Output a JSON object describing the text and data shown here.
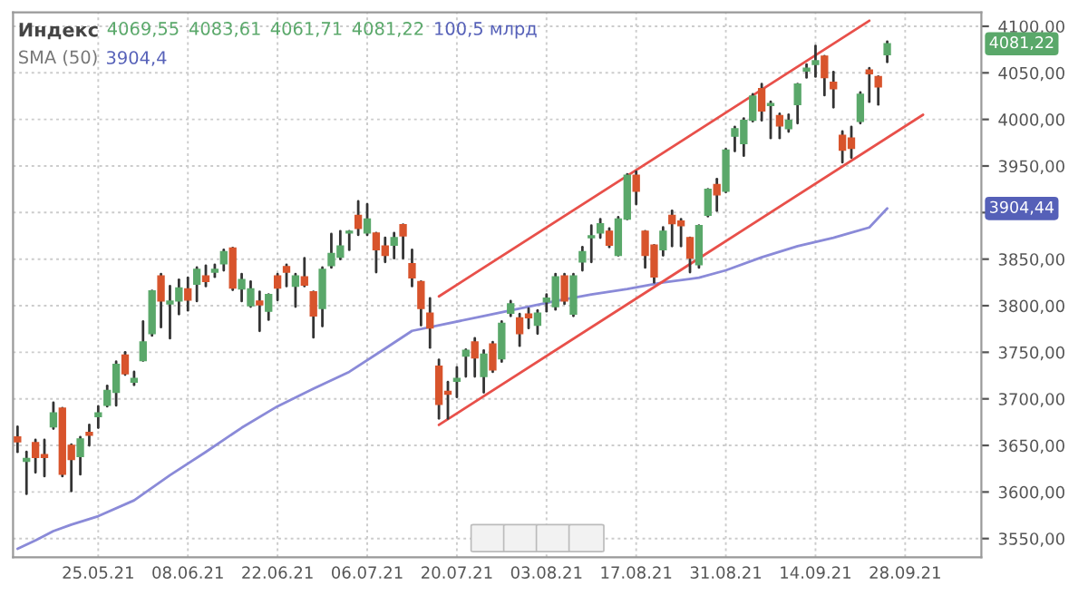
{
  "chart_data": {
    "type": "candlestick",
    "title": "Индекс",
    "categories": [
      null,
      null,
      null,
      null,
      null,
      null,
      null,
      null,
      null,
      "25.05.21",
      null,
      null,
      null,
      null,
      null,
      null,
      null,
      null,
      null,
      "08.06.21",
      null,
      null,
      null,
      null,
      null,
      null,
      null,
      null,
      null,
      "22.06.21",
      null,
      null,
      null,
      null,
      null,
      null,
      null,
      null,
      null,
      "06.07.21",
      null,
      null,
      null,
      null,
      null,
      null,
      null,
      null,
      null,
      "20.07.21",
      null,
      null,
      null,
      null,
      null,
      null,
      null,
      null,
      null,
      "03.08.21",
      null,
      null,
      null,
      null,
      null,
      null,
      null,
      null,
      null,
      "17.08.21",
      null,
      null,
      null,
      null,
      null,
      null,
      null,
      null,
      null,
      "31.08.21",
      null,
      null,
      null,
      null,
      null,
      null,
      null,
      null,
      null,
      "14.09.21",
      null,
      null,
      null,
      null,
      null,
      null,
      null,
      null,
      null,
      "28.09.21",
      null,
      null,
      null,
      null,
      null,
      null,
      null,
      null
    ],
    "ohlc": [
      [
        3659,
        3670,
        3643,
        3654
      ],
      [
        3633,
        3643,
        3598,
        3636
      ],
      [
        3653,
        3656,
        3621,
        3637
      ],
      [
        3640,
        3656,
        3617,
        3637
      ],
      [
        3670,
        3696,
        3668,
        3685
      ],
      [
        3690,
        3690,
        3617,
        3619
      ],
      [
        3650,
        3651,
        3601,
        3635
      ],
      [
        3638,
        3659,
        3619,
        3657
      ],
      [
        3664,
        3672,
        3650,
        3661
      ],
      [
        3681,
        3692,
        3669,
        3685
      ],
      [
        3693,
        3714,
        3692,
        3709
      ],
      [
        3707,
        3740,
        3693,
        3737
      ],
      [
        3747,
        3750,
        3726,
        3727
      ],
      [
        3718,
        3729,
        3715,
        3722
      ],
      [
        3741,
        3783,
        3741,
        3761
      ],
      [
        3770,
        3816,
        3768,
        3816
      ],
      [
        3832,
        3834,
        3777,
        3805
      ],
      [
        3802,
        3821,
        3765,
        3805
      ],
      [
        3805,
        3828,
        3791,
        3819
      ],
      [
        3818,
        3830,
        3795,
        3806
      ],
      [
        3823,
        3841,
        3805,
        3839
      ],
      [
        3832,
        3843,
        3821,
        3826
      ],
      [
        3836,
        3844,
        3831,
        3839
      ],
      [
        3845,
        3860,
        3838,
        3858
      ],
      [
        3862,
        3862,
        3817,
        3819
      ],
      [
        3818,
        3834,
        3805,
        3828
      ],
      [
        3800,
        3826,
        3799,
        3818
      ],
      [
        3805,
        3815,
        3773,
        3801
      ],
      [
        3794,
        3812,
        3785,
        3812
      ],
      [
        3832,
        3834,
        3806,
        3819
      ],
      [
        3842,
        3844,
        3821,
        3836
      ],
      [
        3821,
        3834,
        3799,
        3832
      ],
      [
        3831,
        3851,
        3821,
        3822
      ],
      [
        3815,
        3815,
        3766,
        3789
      ],
      [
        3797,
        3841,
        3778,
        3839
      ],
      [
        3843,
        3877,
        3841,
        3856
      ],
      [
        3852,
        3880,
        3850,
        3864
      ],
      [
        3878,
        3880,
        3860,
        3880
      ],
      [
        3897,
        3912,
        3876,
        3883
      ],
      [
        3878,
        3909,
        3876,
        3893
      ],
      [
        3878,
        3878,
        3836,
        3860
      ],
      [
        3864,
        3873,
        3847,
        3854
      ],
      [
        3865,
        3878,
        3851,
        3873
      ],
      [
        3887,
        3887,
        3851,
        3875
      ],
      [
        3845,
        3860,
        3821,
        3830
      ],
      [
        3826,
        3826,
        3779,
        3797
      ],
      [
        3792,
        3808,
        3755,
        3776
      ],
      [
        3735,
        3742,
        3679,
        3694
      ],
      [
        3708,
        3718,
        3679,
        3705
      ],
      [
        3719,
        3734,
        3702,
        3722
      ],
      [
        3746,
        3753,
        3724,
        3752
      ],
      [
        3761,
        3765,
        3724,
        3744
      ],
      [
        3724,
        3752,
        3707,
        3748
      ],
      [
        3759,
        3761,
        3729,
        3731
      ],
      [
        3743,
        3783,
        3740,
        3781
      ],
      [
        3792,
        3805,
        3789,
        3802
      ],
      [
        3787,
        3791,
        3757,
        3770
      ],
      [
        3791,
        3797,
        3776,
        3787
      ],
      [
        3779,
        3795,
        3770,
        3792
      ],
      [
        3804,
        3812,
        3794,
        3808
      ],
      [
        3799,
        3834,
        3796,
        3831
      ],
      [
        3832,
        3834,
        3802,
        3805
      ],
      [
        3791,
        3834,
        3789,
        3832
      ],
      [
        3847,
        3863,
        3838,
        3858
      ],
      [
        3873,
        3886,
        3847,
        3875
      ],
      [
        3878,
        3893,
        3873,
        3888
      ],
      [
        3880,
        3883,
        3863,
        3865
      ],
      [
        3854,
        3895,
        3854,
        3893
      ],
      [
        3893,
        3941,
        3893,
        3940
      ],
      [
        3940,
        3944,
        3909,
        3923
      ],
      [
        3880,
        3880,
        3841,
        3854
      ],
      [
        3865,
        3865,
        3825,
        3831
      ],
      [
        3860,
        3884,
        3854,
        3880
      ],
      [
        3897,
        3902,
        3864,
        3888
      ],
      [
        3891,
        3893,
        3864,
        3886
      ],
      [
        3873,
        3873,
        3836,
        3851
      ],
      [
        3844,
        3886,
        3841,
        3886
      ],
      [
        3897,
        3925,
        3896,
        3925
      ],
      [
        3930,
        3936,
        3902,
        3919
      ],
      [
        3923,
        3968,
        3922,
        3967
      ],
      [
        3982,
        3992,
        3966,
        3990
      ],
      [
        3974,
        4001,
        3961,
        3999
      ],
      [
        3999,
        4027,
        3998,
        4025
      ],
      [
        4033,
        4038,
        3999,
        4009
      ],
      [
        4015,
        4019,
        3980,
        4017
      ],
      [
        4004,
        4006,
        3980,
        3993
      ],
      [
        3990,
        4005,
        3987,
        3999
      ],
      [
        4016,
        4038,
        3996,
        4038
      ],
      [
        4052,
        4059,
        4045,
        4055
      ],
      [
        4059,
        4079,
        4046,
        4063
      ],
      [
        4068,
        4068,
        4026,
        4045
      ],
      [
        4040,
        4051,
        4013,
        4033
      ],
      [
        3983,
        3987,
        3954,
        3967
      ],
      [
        3980,
        3992,
        3959,
        3969
      ],
      [
        3998,
        4029,
        3996,
        4027
      ],
      [
        4053,
        4055,
        4019,
        4049
      ],
      [
        4046,
        4046,
        4016,
        4035
      ],
      [
        4069.55,
        4083.61,
        4061.71,
        4081.22
      ],
      null,
      null,
      null,
      null,
      null,
      null,
      null,
      null,
      null,
      null
    ],
    "series": [
      {
        "type": "line",
        "name": "SMA (50)",
        "color": "#8a8ad8",
        "values": [
          3539,
          null,
          3548,
          null,
          3558,
          null,
          3565,
          null,
          null,
          3574,
          null,
          null,
          null,
          3591,
          null,
          null,
          null,
          3618,
          null,
          null,
          null,
          3643,
          null,
          null,
          null,
          3669,
          null,
          null,
          null,
          3692,
          null,
          null,
          null,
          3711,
          null,
          null,
          null,
          3729,
          null,
          null,
          null,
          3754,
          null,
          null,
          3773,
          null,
          null,
          3779,
          null,
          null,
          null,
          null,
          3789,
          null,
          null,
          null,
          3797,
          null,
          null,
          null,
          3805,
          null,
          null,
          null,
          3812,
          null,
          null,
          null,
          3818,
          null,
          null,
          null,
          3825,
          null,
          null,
          null,
          3830,
          null,
          null,
          3838,
          null,
          null,
          null,
          3852,
          null,
          null,
          null,
          3864,
          null,
          null,
          null,
          3873,
          null,
          null,
          null,
          3884,
          null,
          3904.4,
          null,
          null,
          null,
          null,
          null,
          null,
          null,
          null,
          null,
          null
        ]
      },
      {
        "type": "line",
        "color": "#e8504a",
        "values": [
          null,
          null,
          null,
          null,
          null,
          null,
          null,
          null,
          null,
          null,
          null,
          null,
          null,
          null,
          null,
          null,
          null,
          null,
          null,
          null,
          null,
          null,
          null,
          null,
          null,
          null,
          null,
          null,
          null,
          null,
          null,
          null,
          null,
          null,
          null,
          null,
          null,
          null,
          null,
          null,
          null,
          null,
          null,
          null,
          null,
          null,
          null,
          3810,
          null,
          null,
          null,
          null,
          null,
          null,
          null,
          null,
          null,
          null,
          null,
          null,
          null,
          null,
          null,
          null,
          null,
          null,
          null,
          null,
          null,
          null,
          null,
          null,
          null,
          null,
          null,
          null,
          null,
          null,
          null,
          null,
          null,
          null,
          null,
          null,
          null,
          null,
          null,
          null,
          null,
          null,
          null,
          null,
          null,
          null,
          null,
          4106,
          null,
          null,
          null,
          null,
          null,
          null,
          null,
          null,
          null,
          null,
          null,
          null
        ]
      },
      {
        "type": "line",
        "color": "#e8504a",
        "values": [
          null,
          null,
          null,
          null,
          null,
          null,
          null,
          null,
          null,
          null,
          null,
          null,
          null,
          null,
          null,
          null,
          null,
          null,
          null,
          null,
          null,
          null,
          null,
          null,
          null,
          null,
          null,
          null,
          null,
          null,
          null,
          null,
          null,
          null,
          null,
          null,
          null,
          null,
          null,
          null,
          null,
          null,
          null,
          null,
          null,
          null,
          null,
          3672,
          null,
          null,
          null,
          null,
          null,
          null,
          null,
          null,
          null,
          null,
          null,
          null,
          null,
          null,
          null,
          null,
          null,
          null,
          null,
          null,
          null,
          null,
          null,
          null,
          null,
          null,
          null,
          null,
          null,
          null,
          null,
          null,
          null,
          null,
          null,
          null,
          null,
          null,
          null,
          null,
          null,
          null,
          null,
          null,
          null,
          null,
          null,
          null,
          null,
          null,
          null,
          null,
          null,
          4005,
          null,
          null,
          null,
          null,
          null,
          null
        ]
      }
    ],
    "ylim": [
      3530,
      4115
    ],
    "yticks": [
      {
        "value": 3550,
        "label": "3550,00"
      },
      {
        "value": 3600,
        "label": "3600,00"
      },
      {
        "value": 3650,
        "label": "3650,00"
      },
      {
        "value": 3700,
        "label": "3700,00"
      },
      {
        "value": 3750,
        "label": "3750,00"
      },
      {
        "value": 3800,
        "label": "3800,00"
      },
      {
        "value": 3850,
        "label": "3850,00"
      },
      {
        "value": 3900,
        "label": null
      },
      {
        "value": 3950,
        "label": "3950,00"
      },
      {
        "value": 4000,
        "label": "4000,00"
      },
      {
        "value": 4050,
        "label": "4050,00"
      },
      {
        "value": 4100,
        "label": "4100,00"
      }
    ],
    "grid": true,
    "annotations": [
      "4069,55",
      "4083,61",
      "4061,71",
      "4081,22",
      "100,5 млрд",
      "3904,4",
      "4081,22",
      "3904,44"
    ]
  }
}
